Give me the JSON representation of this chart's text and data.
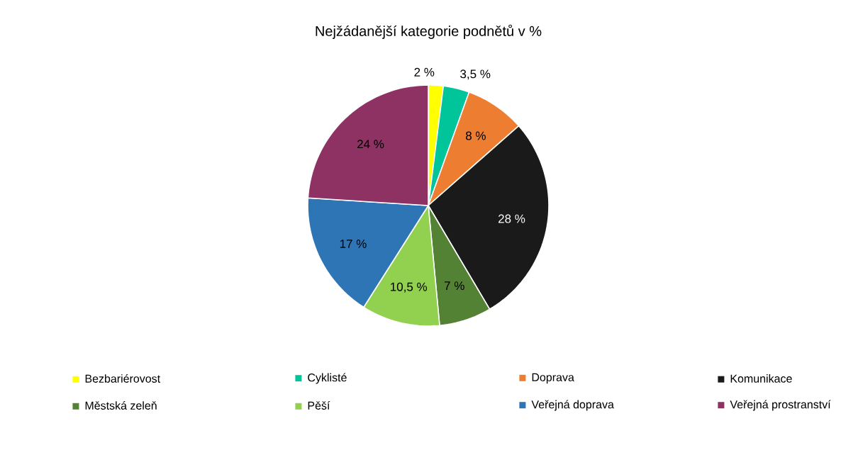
{
  "chart_data": {
    "type": "pie",
    "title": "Nejžádanější kategorie podnětů v %",
    "categories": [
      "Bezbariérovost",
      "Cyklisté",
      "Doprava",
      "Komunikace",
      "Městská zeleň",
      "Pěší",
      "Veřejná doprava",
      "Veřejná prostranství"
    ],
    "values": [
      2,
      3.5,
      8,
      28,
      7,
      10.5,
      17,
      24
    ],
    "colors": [
      "#ffff00",
      "#00c49a",
      "#ed7d31",
      "#1a1a1a",
      "#548235",
      "#92d050",
      "#2e75b6",
      "#8e3163"
    ],
    "value_labels": [
      "2 %",
      "3,5 %",
      "8 %",
      "28 %",
      "7 %",
      "10,5 %",
      "17 %",
      "24 %"
    ],
    "legend": "bottom"
  }
}
